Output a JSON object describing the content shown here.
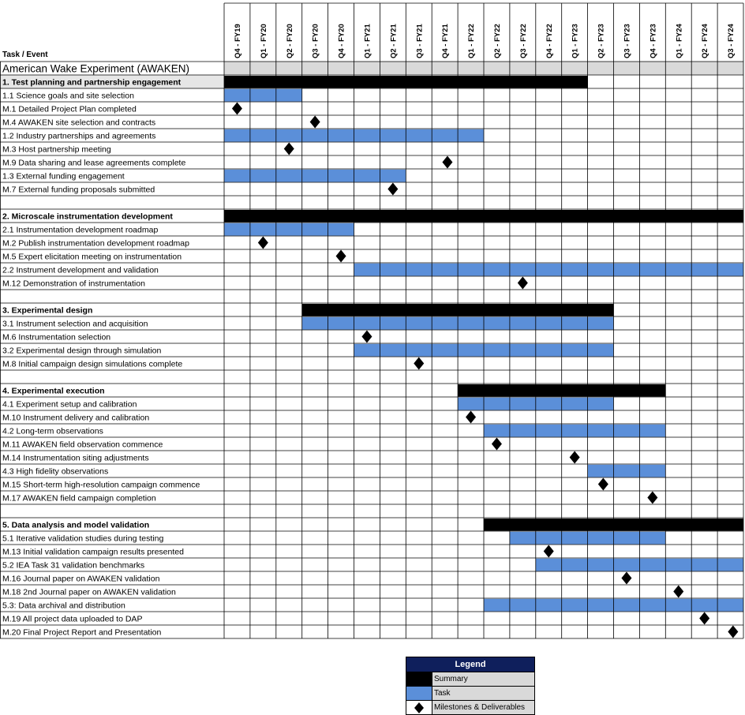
{
  "header": {
    "task_column_label": "Task / Event"
  },
  "chart_data": {
    "type": "gantt",
    "title": "American Wake Experiment (AWAKEN)",
    "periods": [
      "Q4 - FY19",
      "Q1 - FY20",
      "Q2 - FY20",
      "Q3 - FY20",
      "Q4 - FY20",
      "Q1 - FY21",
      "Q2 - FY21",
      "Q3 - FY21",
      "Q4 - FY21",
      "Q1 - FY22",
      "Q2 - FY22",
      "Q3 - FY22",
      "Q4 - FY22",
      "Q1 - FY23",
      "Q2 - FY23",
      "Q3 - FY23",
      "Q4 - FY23",
      "Q1 - FY24",
      "Q2 - FY24",
      "Q3 - FY24"
    ],
    "sections": [
      {
        "name": "1. Test planning and partnership engagement",
        "summary": {
          "start": 0,
          "end": 14
        },
        "shaded": true,
        "rows": [
          {
            "label": "1.1 Science goals and site selection",
            "kind": "task",
            "start": 0,
            "end": 3
          },
          {
            "label": "M.1 Detailed Project Plan completed",
            "kind": "milestone",
            "at": 0.5
          },
          {
            "label": "M.4 AWAKEN site selection and contracts",
            "kind": "milestone",
            "at": 3.5
          },
          {
            "label": "1.2 Industry partnerships and agreements",
            "kind": "task",
            "start": 0,
            "end": 10
          },
          {
            "label": "M.3 Host partnership meeting",
            "kind": "milestone",
            "at": 2.5
          },
          {
            "label": "M.9 Data sharing and  lease agreements complete",
            "kind": "milestone",
            "at": 8.6
          },
          {
            "label": "1.3 External funding engagement",
            "kind": "task",
            "start": 0,
            "end": 7
          },
          {
            "label": "M.7 External funding proposals submitted",
            "kind": "milestone",
            "at": 6.5
          }
        ]
      },
      {
        "name": "2. Microscale instrumentation development",
        "summary": {
          "start": 0,
          "end": 20
        },
        "shaded": false,
        "rows": [
          {
            "label": "2.1 Instrumentation development roadmap",
            "kind": "task",
            "start": 0,
            "end": 5
          },
          {
            "label": "M.2 Publish instrumentation development roadmap",
            "kind": "milestone",
            "at": 1.5
          },
          {
            "label": "M.5 Expert elicitation meeting on instrumentation",
            "kind": "milestone",
            "at": 4.5
          },
          {
            "label": "2.2 Instrument development and validation",
            "kind": "task",
            "start": 5,
            "end": 20
          },
          {
            "label": "M.12 Demonstration of instrumentation",
            "kind": "milestone",
            "at": 11.5
          }
        ]
      },
      {
        "name": "3. Experimental design",
        "summary": {
          "start": 3,
          "end": 15
        },
        "shaded": false,
        "rows": [
          {
            "label": "3.1 Instrument selection and acquisition",
            "kind": "task",
            "start": 3,
            "end": 15
          },
          {
            "label": "M.6 Instrumentation selection",
            "kind": "milestone",
            "at": 5.5
          },
          {
            "label": "3.2 Experimental design through simulation",
            "kind": "task",
            "start": 5,
            "end": 15
          },
          {
            "label": "M.8 Initial campaign design simulations complete",
            "kind": "milestone",
            "at": 7.5
          }
        ]
      },
      {
        "name": "4. Experimental execution",
        "summary": {
          "start": 9,
          "end": 17
        },
        "shaded": false,
        "rows": [
          {
            "label": "4.1 Experiment setup and calibration",
            "kind": "task",
            "start": 9,
            "end": 15
          },
          {
            "label": "M.10 Instrument delivery and  calibration",
            "kind": "milestone",
            "at": 9.5
          },
          {
            "label": "4.2 Long-term observations",
            "kind": "task",
            "start": 10,
            "end": 17
          },
          {
            "label": "M.11 AWAKEN field observation commence",
            "kind": "milestone",
            "at": 10.5
          },
          {
            "label": "M.14 Instrumentation siting adjustments",
            "kind": "milestone",
            "at": 13.5
          },
          {
            "label": "4.3 High fidelity observations",
            "kind": "task",
            "start": 14,
            "end": 17
          },
          {
            "label": "M.15 Short-term high-resolution campaign commence",
            "kind": "milestone",
            "at": 14.6
          },
          {
            "label": "M.17 AWAKEN field campaign completion",
            "kind": "milestone",
            "at": 16.5
          }
        ]
      },
      {
        "name": "5. Data analysis and model validation",
        "summary": {
          "start": 10,
          "end": 20
        },
        "shaded": false,
        "rows": [
          {
            "label": "5.1 Iterative validation studies during testing",
            "kind": "task",
            "start": 11,
            "end": 17
          },
          {
            "label": "M.13 Initial validation campaign results presented",
            "kind": "milestone",
            "at": 12.5
          },
          {
            "label": "5.2 IEA Task 31 validation benchmarks",
            "kind": "task",
            "start": 12,
            "end": 20
          },
          {
            "label": "M.16 Journal paper on AWAKEN  validation",
            "kind": "milestone",
            "at": 15.5
          },
          {
            "label": "M.18 2nd Journal paper on AWAKEN  validation",
            "kind": "milestone",
            "at": 17.5
          },
          {
            "label": "5.3: Data archival and distribution",
            "kind": "task",
            "start": 10,
            "end": 20
          },
          {
            "label": "M.19 All project data uploaded to DAP",
            "kind": "milestone",
            "at": 18.5
          },
          {
            "label": "M.20 Final Project Report and Presentation",
            "kind": "milestone",
            "at": 19.6
          }
        ]
      }
    ],
    "colors": {
      "summary": "#000000",
      "task": "#5b8fd9",
      "milestone": "#000000",
      "section_shade": "#e6e6e6",
      "header_shade": "#d9d9d9",
      "grid": "#000000"
    }
  },
  "legend": {
    "title": "Legend",
    "items": [
      {
        "label": "Summary",
        "kind": "summary"
      },
      {
        "label": "Task",
        "kind": "task"
      },
      {
        "label": "Milestones & Deliverables",
        "kind": "milestone"
      }
    ]
  }
}
